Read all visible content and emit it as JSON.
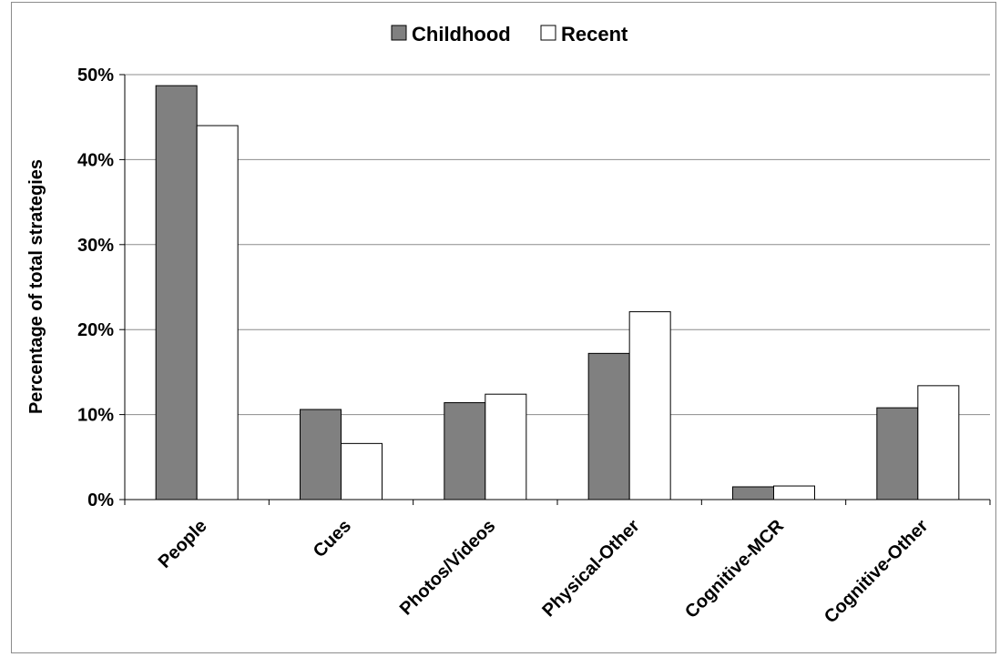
{
  "chart_data": {
    "type": "bar",
    "categories": [
      "People",
      "Cues",
      "Photos/Videos",
      "Physical-Other",
      "Cognitive-MCR",
      "Cognitive-Other"
    ],
    "series": [
      {
        "name": "Childhood",
        "values": [
          48.7,
          10.6,
          11.4,
          17.2,
          1.5,
          10.8
        ],
        "color": "#808080"
      },
      {
        "name": "Recent",
        "values": [
          44.0,
          6.6,
          12.4,
          22.1,
          1.6,
          13.4
        ],
        "color": "#ffffff"
      }
    ],
    "ylabel": "Percentage of total strategies",
    "ylim": [
      0,
      50
    ],
    "yticks": [
      0,
      10,
      20,
      30,
      40,
      50
    ],
    "ytick_labels": [
      "0%",
      "10%",
      "20%",
      "30%",
      "40%",
      "50%"
    ],
    "grid": true,
    "legend": "top-center"
  }
}
